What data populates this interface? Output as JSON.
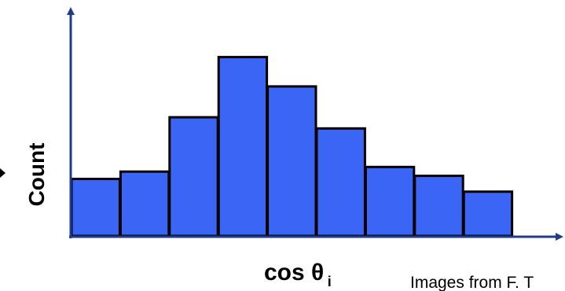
{
  "chart_data": {
    "type": "bar",
    "title": "",
    "ylabel": "Count",
    "xlabel": "cos θ",
    "xlabel_subscript": "i",
    "values": [
      1.48,
      1.67,
      3.08,
      4.64,
      3.88,
      2.79,
      1.79,
      1.56,
      1.15
    ],
    "ylim": [
      0,
      6.0
    ],
    "grid": false,
    "bar_color": "#3b66f5",
    "bar_edge_color": "#000000",
    "axis_color": "#1f3c8a"
  },
  "credit": "Images from F. T"
}
